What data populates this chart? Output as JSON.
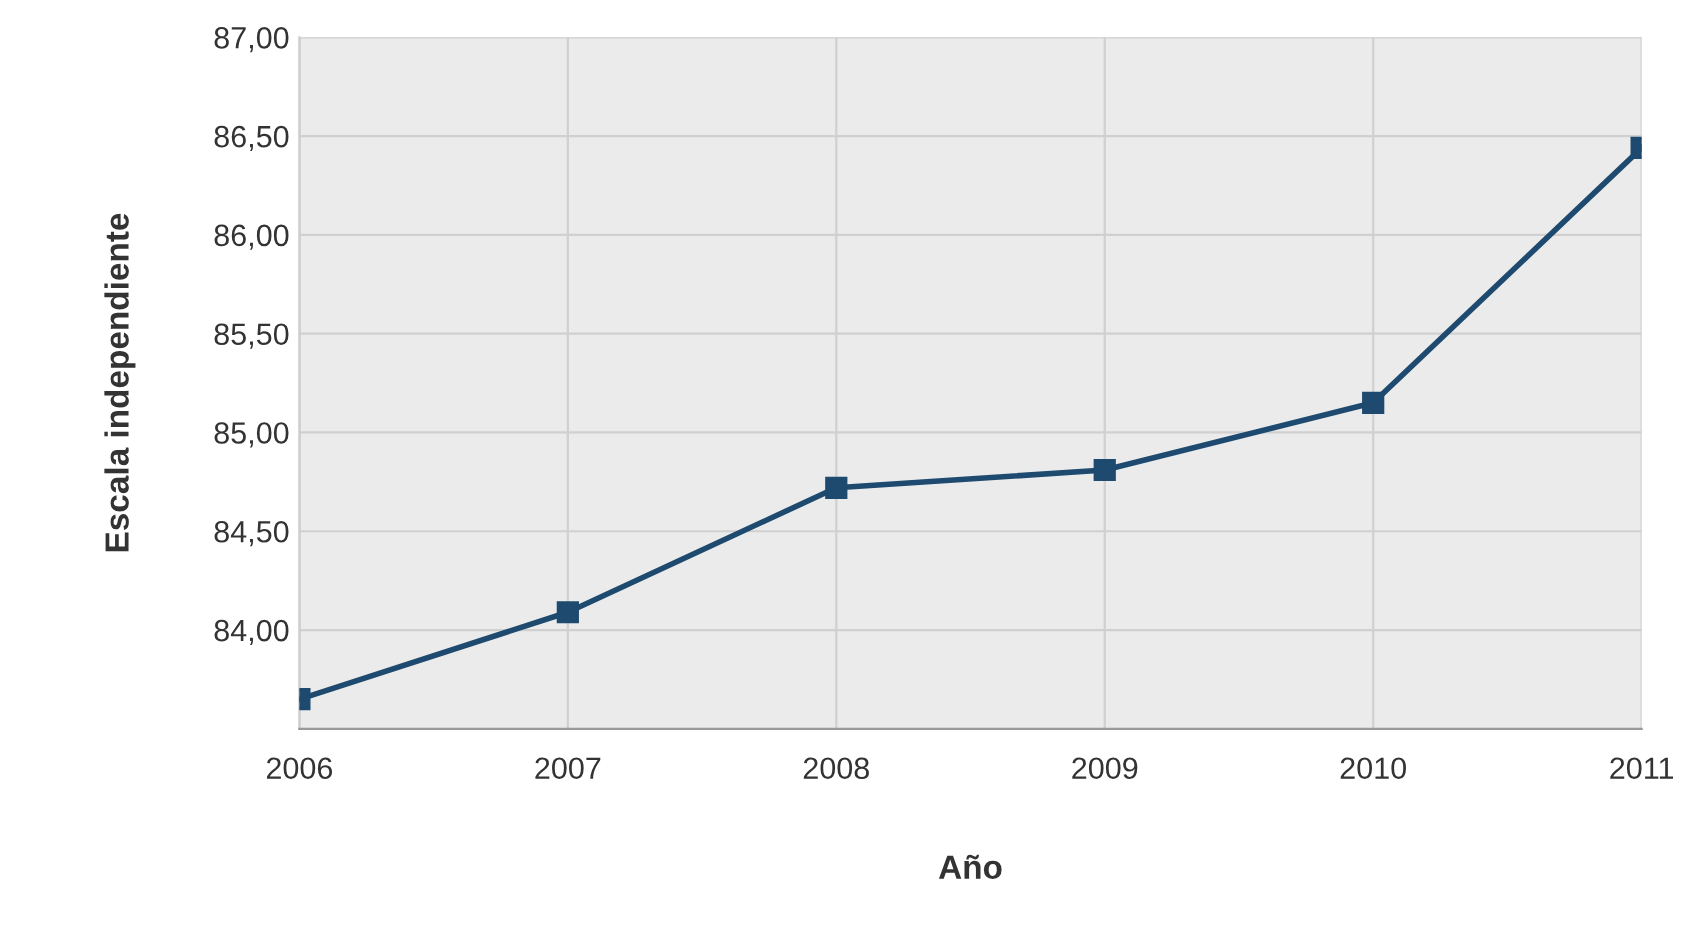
{
  "chart_data": {
    "type": "line",
    "xlabel": "Año",
    "ylabel": "Escala independiente",
    "x": [
      2006,
      2007,
      2008,
      2009,
      2010,
      2011
    ],
    "series": [
      {
        "color": "#1d4a6e",
        "values": [
          83.65,
          84.09,
          84.72,
          84.81,
          85.15,
          86.44
        ]
      }
    ],
    "xlim": [
      2006,
      2011
    ],
    "xticks": [
      2006,
      2007,
      2008,
      2009,
      2010,
      2011
    ],
    "ylim": [
      83.5,
      87
    ],
    "yticks": [
      {
        "value": 84,
        "label": "84,00"
      },
      {
        "value": 84.5,
        "label": "84,50"
      },
      {
        "value": 85,
        "label": "85,00"
      },
      {
        "value": 85.5,
        "label": "85,50"
      },
      {
        "value": 86,
        "label": "86,00"
      },
      {
        "value": 86.5,
        "label": "86,50"
      },
      {
        "value": 87,
        "label": "87,00"
      }
    ],
    "grid": true,
    "marker": "square",
    "line_style": "solid",
    "legend": false
  }
}
